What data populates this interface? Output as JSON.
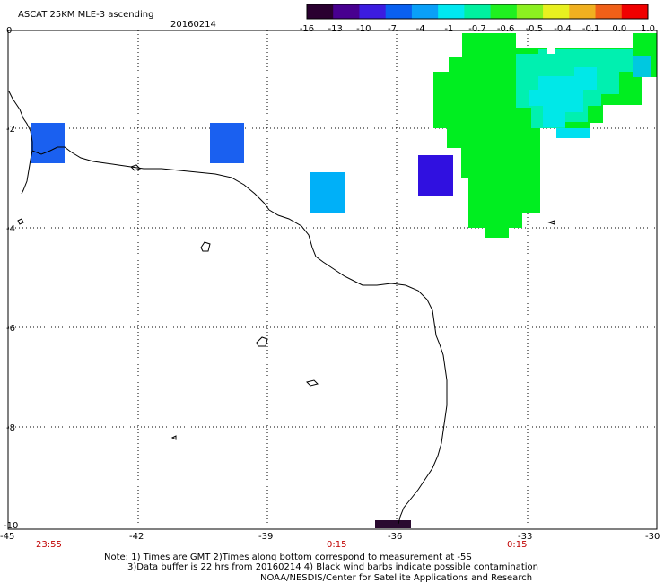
{
  "header": {
    "title": "ASCAT 25KM MLE-3 ascending",
    "date": "20160214"
  },
  "colorbar": {
    "tick_labels": [
      "-16",
      "-13",
      "-10",
      "-7",
      "-4",
      "-1",
      "-0.7",
      "-0.6",
      "-0.5",
      "-0.4",
      "-0.1",
      "0.0",
      "1.0"
    ],
    "colors": [
      "#2a0030",
      "#480090",
      "#3c1ce0",
      "#0a60f0",
      "#0aa0f8",
      "#00e8f0",
      "#00f0a0",
      "#20f020",
      "#8cf020",
      "#e8f020",
      "#f0b020",
      "#f06018",
      "#f00000"
    ]
  },
  "map": {
    "lon_labels": [
      "-45",
      "-42",
      "-39",
      "-36",
      "-33",
      "-30"
    ],
    "lat_labels": [
      "0",
      "-2",
      "-4",
      "-6",
      "-8",
      "-10"
    ],
    "time_labels": [
      "23:55",
      "0:15",
      "0:15"
    ],
    "lon_range": [
      -45,
      -30
    ],
    "lat_range": [
      -10,
      0
    ]
  },
  "footer": {
    "line1": "Note: 1) Times are GMT 2)Times along bottom correspond to measurement at -5S",
    "line2": "3)Data buffer is 22 hrs from 20160214 4) Black wind barbs indicate possible contamination",
    "line3": "NOAA/NESDIS/Center for Satellite Applications and Research"
  }
}
